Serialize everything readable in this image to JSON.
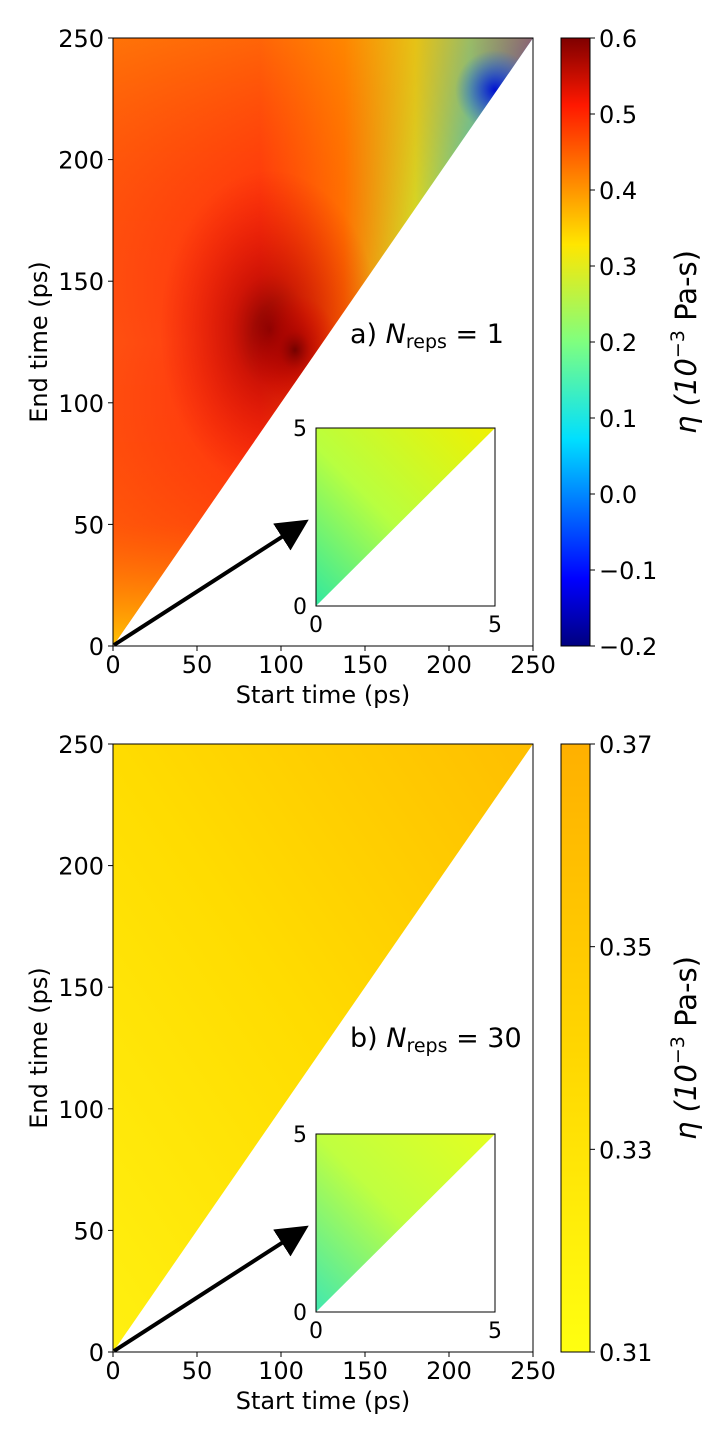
{
  "chart_data": [
    {
      "type": "heatmap",
      "panel_label": "a) ",
      "annotation": "N",
      "annotation_sub": "reps",
      "annotation_value": " = 1",
      "xlabel": "Start time (ps)",
      "ylabel": "End time (ps)",
      "xlim": [
        0,
        250
      ],
      "ylim": [
        0,
        250
      ],
      "xticks": [
        0,
        50,
        100,
        150,
        200,
        250
      ],
      "yticks": [
        0,
        50,
        100,
        150,
        200,
        250
      ],
      "colorbar": {
        "label": "η (10",
        "label_exp": "−3",
        "label_unit": " Pa-s)",
        "colormap": "jet",
        "range": [
          -0.2,
          0.6
        ],
        "ticks": [
          -0.2,
          -0.1,
          0.0,
          0.1,
          0.2,
          0.3,
          0.4,
          0.5,
          0.6
        ],
        "tick_labels": [
          "−0.2",
          "−0.1",
          "0.0",
          "0.1",
          "0.2",
          "0.3",
          "0.4",
          "0.5",
          "0.6"
        ]
      },
      "inset": {
        "xlim": [
          0,
          5
        ],
        "ylim": [
          0,
          5
        ],
        "xticks": [
          "0",
          "5"
        ],
        "yticks": [
          "0",
          "5"
        ],
        "approx_value_range": [
          0.1,
          0.33
        ]
      },
      "approx_values": [
        {
          "start": 0,
          "end": 250,
          "value": 0.42
        },
        {
          "start": 110,
          "end": 120,
          "value": 0.6
        },
        {
          "start": 50,
          "end": 150,
          "value": 0.54
        },
        {
          "start": 125,
          "end": 250,
          "value": 0.32
        },
        {
          "start": 245,
          "end": 250,
          "value": -0.15
        },
        {
          "start": 0,
          "end": 10,
          "value": 0.35
        }
      ]
    },
    {
      "type": "heatmap",
      "panel_label": "b) ",
      "annotation": "N",
      "annotation_sub": "reps",
      "annotation_value": " = 30",
      "xlabel": "Start time (ps)",
      "ylabel": "End time (ps)",
      "xlim": [
        0,
        250
      ],
      "ylim": [
        0,
        250
      ],
      "xticks": [
        0,
        50,
        100,
        150,
        200,
        250
      ],
      "yticks": [
        0,
        50,
        100,
        150,
        200,
        250
      ],
      "colorbar": {
        "label": "η (10",
        "label_exp": "−3",
        "label_unit": " Pa-s)",
        "colormap": "yellow-orange",
        "range": [
          0.31,
          0.37
        ],
        "ticks": [
          0.31,
          0.33,
          0.35,
          0.37
        ],
        "tick_labels": [
          "0.31",
          "0.33",
          "0.35",
          "0.37"
        ]
      },
      "inset": {
        "xlim": [
          0,
          5
        ],
        "ylim": [
          0,
          5
        ],
        "xticks": [
          "0",
          "5"
        ],
        "yticks": [
          "0",
          "5"
        ],
        "approx_value_range": [
          0.28,
          0.32
        ]
      },
      "approx_values": [
        {
          "start": 0,
          "end": 250,
          "value": 0.33
        },
        {
          "start": 220,
          "end": 230,
          "value": 0.355
        },
        {
          "start": 0,
          "end": 20,
          "value": 0.315
        }
      ]
    }
  ]
}
